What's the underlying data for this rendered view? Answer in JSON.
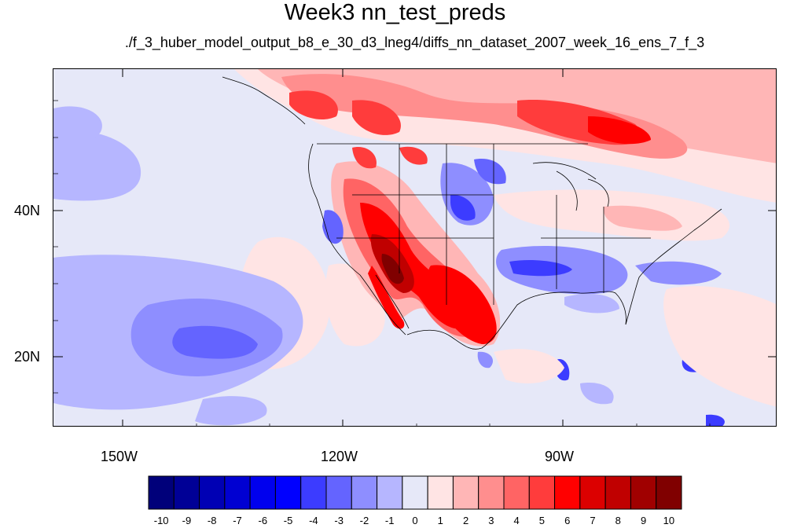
{
  "title": "Week3 nn_test_preds",
  "subtitle": "./f_3_huber_model_output_b8_e_30_d3_lneg4/diffs_nn_dataset_2007_week_16_ens_7_f_3",
  "map": {
    "lon_range": [
      -160,
      -62
    ],
    "lat_range": [
      10,
      59
    ],
    "y_tick_labels": [
      {
        "text": "40N",
        "lat": 40
      },
      {
        "text": "20N",
        "lat": 20
      }
    ],
    "x_tick_labels": [
      {
        "text": "150W",
        "lon": -150
      },
      {
        "text": "120W",
        "lon": -120
      },
      {
        "text": "90W",
        "lon": -90
      }
    ]
  },
  "colorbar": {
    "levels": [
      "-10",
      "-9",
      "-8",
      "-7",
      "-6",
      "-5",
      "-4",
      "-3",
      "-2",
      "-1",
      "0",
      "1",
      "2",
      "3",
      "4",
      "5",
      "6",
      "7",
      "8",
      "9",
      "10"
    ],
    "colors": [
      "#00007a",
      "#000096",
      "#0000b4",
      "#0000d2",
      "#0000ee",
      "#0000ff",
      "#3c3cff",
      "#6464ff",
      "#8e8eff",
      "#b6b6ff",
      "#e6e8f8",
      "#ffe4e4",
      "#ffb6b6",
      "#ff8e8e",
      "#ff6464",
      "#ff3c3c",
      "#ff0000",
      "#dc0000",
      "#c00000",
      "#a00000",
      "#800000"
    ]
  }
}
